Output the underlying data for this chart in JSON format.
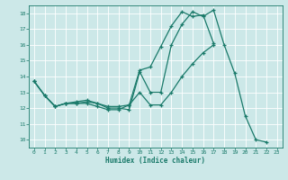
{
  "xlabel": "Humidex (Indice chaleur)",
  "bg_color": "#cce8e8",
  "grid_color": "#ffffff",
  "line_color": "#1a7a6a",
  "xlim": [
    -0.5,
    23.5
  ],
  "ylim": [
    9.5,
    18.5
  ],
  "xticks": [
    0,
    1,
    2,
    3,
    4,
    5,
    6,
    7,
    8,
    9,
    10,
    11,
    12,
    13,
    14,
    15,
    16,
    17,
    18,
    19,
    20,
    21,
    22,
    23
  ],
  "yticks": [
    10,
    11,
    12,
    13,
    14,
    15,
    16,
    17,
    18
  ],
  "line1_x": [
    0,
    1,
    2,
    3,
    4,
    5,
    6,
    7,
    8,
    9,
    10,
    11,
    12,
    13,
    14,
    15,
    16,
    17,
    18,
    19,
    20,
    21,
    22
  ],
  "line1_y": [
    13.7,
    12.8,
    12.1,
    12.3,
    12.3,
    12.4,
    12.3,
    12.0,
    12.0,
    11.9,
    14.3,
    13.0,
    13.0,
    16.0,
    17.3,
    18.1,
    17.8,
    18.2,
    16.0,
    14.2,
    11.5,
    10.0,
    9.85
  ],
  "line2_x": [
    0,
    1,
    2,
    3,
    4,
    5,
    6,
    7,
    8,
    9,
    10,
    11,
    12,
    13,
    14,
    15,
    16,
    17
  ],
  "line2_y": [
    13.7,
    12.8,
    12.1,
    12.3,
    12.4,
    12.5,
    12.3,
    12.1,
    12.1,
    12.2,
    14.4,
    14.6,
    15.9,
    17.2,
    18.1,
    17.8,
    17.9,
    16.1
  ],
  "line3_x": [
    0,
    1,
    2,
    3,
    4,
    5,
    6,
    7,
    8,
    9,
    10,
    11,
    12,
    13,
    14,
    15,
    16,
    17
  ],
  "line3_y": [
    13.7,
    12.8,
    12.1,
    12.3,
    12.3,
    12.3,
    12.1,
    11.9,
    11.9,
    12.2,
    13.0,
    12.2,
    12.2,
    13.0,
    14.0,
    14.8,
    15.5,
    16.0
  ]
}
